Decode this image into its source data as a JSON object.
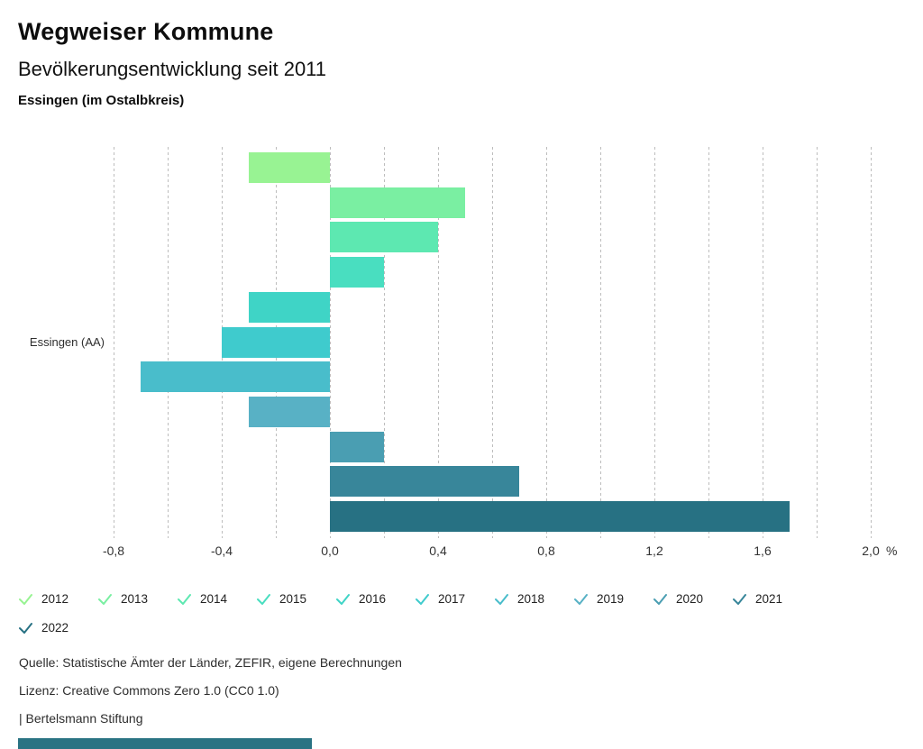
{
  "header": {
    "title": "Wegweiser Kommune",
    "subtitle": "Bevölkerungsentwicklung seit 2011",
    "location": "Essingen (im Ostalbkreis)"
  },
  "chart_data": {
    "type": "bar",
    "orientation": "horizontal",
    "title": "Bevölkerungsentwicklung seit 2011",
    "group_label": "Essingen (AA)",
    "categories": [
      "2012",
      "2013",
      "2014",
      "2015",
      "2016",
      "2017",
      "2018",
      "2019",
      "2020",
      "2021",
      "2022"
    ],
    "values": [
      -0.3,
      0.5,
      0.4,
      0.2,
      -0.3,
      -0.4,
      -0.7,
      -0.3,
      0.2,
      0.7,
      1.7
    ],
    "colors": [
      "#98f393",
      "#7aefa2",
      "#5de8b1",
      "#49dec0",
      "#3fd4c6",
      "#3fcbcd",
      "#49bdcb",
      "#58b1c5",
      "#4a9eb2",
      "#38869a",
      "#277183"
    ],
    "unit": "%",
    "xlabel": "",
    "ylabel": "",
    "xlim": [
      -0.8,
      2.2
    ],
    "grid": "vertical-dashed-every-0.2",
    "legend_position": "bottom",
    "x_ticks": [
      {
        "value": -0.8,
        "label": "-0,8"
      },
      {
        "value": -0.4,
        "label": "-0,4"
      },
      {
        "value": 0.0,
        "label": "0,0"
      },
      {
        "value": 0.4,
        "label": "0,4"
      },
      {
        "value": 0.8,
        "label": "0,8"
      },
      {
        "value": 1.2,
        "label": "1,2"
      },
      {
        "value": 1.6,
        "label": "1,6"
      },
      {
        "value": 2.0,
        "label": "2,0"
      }
    ]
  },
  "footer": {
    "source": "Quelle: Statistische Ämter der Länder, ZEFIR, eigene Berechnungen",
    "license": "Lizenz: Creative Commons Zero 1.0 (CC0 1.0)",
    "attribution": "| Bertelsmann Stiftung",
    "brand_color": "#2a7383"
  }
}
